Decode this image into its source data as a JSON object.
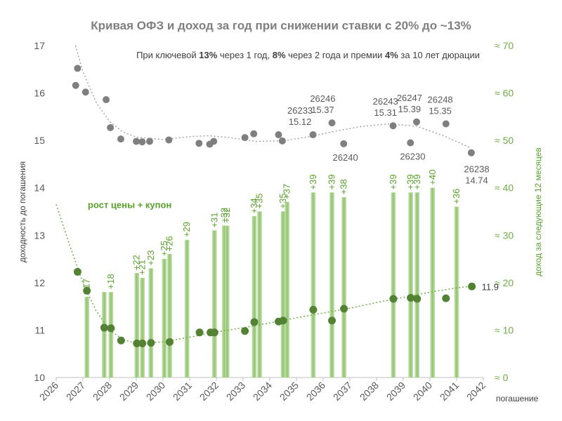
{
  "chart_data": {
    "type": "combo",
    "title": "Кривая ОФЗ и доход за год при снижении ставки с 20% до ~13%",
    "subtitle": {
      "t1": "При ключевой ",
      "b1": "13%",
      "t2": " через 1 год, ",
      "b2": "8%",
      "t3": " через 2 года и премии ",
      "b3": "4%",
      "t4": " за 10 лет дюрации"
    },
    "xlabel": "погашение",
    "ylabel": "доходность до погашения",
    "y2label": "доход за следующие 12 месяцев",
    "xlim": [
      2026,
      2042
    ],
    "ylim": [
      10,
      17
    ],
    "y2lim": [
      0,
      70
    ],
    "x_ticks": [
      "2026",
      "2027",
      "2028",
      "2029",
      "2030",
      "2031",
      "2032",
      "2033",
      "2034",
      "2035",
      "2036",
      "2037",
      "2038",
      "2039",
      "2040",
      "2041",
      "2042"
    ],
    "y_ticks": [
      "10",
      "11",
      "12",
      "13",
      "14",
      "15",
      "16",
      "17"
    ],
    "y2_ticks": [
      "≈ 0",
      "≈ 10",
      "≈ 20",
      "≈ 30",
      "≈ 40",
      "≈ 50",
      "≈ 60",
      "≈ 70"
    ],
    "y2_tick_values": [
      0,
      10,
      20,
      30,
      40,
      50,
      60,
      70
    ],
    "colors": {
      "yield_points": "#7f7f7f",
      "yield_trend": "#a6a6a6",
      "income_points": "#548235",
      "income_trend": "#70ad47",
      "bars": "#a9d18e",
      "bar_labels": "#5aa02c"
    },
    "series_label": "рост цены + купон",
    "yield_points": [
      {
        "x": 2026.73,
        "y": 16.16
      },
      {
        "x": 2026.8,
        "y": 16.52
      },
      {
        "x": 2027.1,
        "y": 16.02
      },
      {
        "x": 2027.87,
        "y": 15.86
      },
      {
        "x": 2028.03,
        "y": 15.27
      },
      {
        "x": 2028.42,
        "y": 15.03
      },
      {
        "x": 2029.0,
        "y": 14.98
      },
      {
        "x": 2029.22,
        "y": 14.97
      },
      {
        "x": 2029.5,
        "y": 14.98
      },
      {
        "x": 2030.22,
        "y": 15.01
      },
      {
        "x": 2031.35,
        "y": 14.94
      },
      {
        "x": 2031.75,
        "y": 14.92
      },
      {
        "x": 2031.9,
        "y": 14.98
      },
      {
        "x": 2033.07,
        "y": 15.06
      },
      {
        "x": 2033.4,
        "y": 15.14
      },
      {
        "x": 2034.33,
        "y": 15.12
      },
      {
        "x": 2034.47,
        "y": 14.99
      },
      {
        "x": 2035.62,
        "y": 15.12
      },
      {
        "x": 2036.33,
        "y": 15.37
      },
      {
        "x": 2036.77,
        "y": 14.93
      },
      {
        "x": 2038.62,
        "y": 15.31
      },
      {
        "x": 2039.27,
        "y": 14.95
      },
      {
        "x": 2039.5,
        "y": 15.39
      },
      {
        "x": 2040.6,
        "y": 15.35
      },
      {
        "x": 2041.55,
        "y": 14.74
      }
    ],
    "bond_labels": [
      {
        "x": 2035.45,
        "y": 15.12,
        "name": "26233",
        "value": "15.12"
      },
      {
        "x": 2036.3,
        "y": 15.37,
        "name": "26246",
        "value": "15.37"
      },
      {
        "x": 2036.78,
        "y": 14.93,
        "name": "26240",
        "value": ""
      },
      {
        "x": 2038.65,
        "y": 15.31,
        "name": "26243",
        "value": "15.31"
      },
      {
        "x": 2039.55,
        "y": 15.39,
        "name": "26247",
        "value": "15.39"
      },
      {
        "x": 2039.3,
        "y": 14.95,
        "name": "26230",
        "value": ""
      },
      {
        "x": 2040.7,
        "y": 15.35,
        "name": "26248",
        "value": "15.35"
      },
      {
        "x": 2041.75,
        "y": 14.74,
        "name": "26238",
        "value": "14.74"
      }
    ],
    "income_points": [
      {
        "x": 2026.8,
        "y": 22.3
      },
      {
        "x": 2027.15,
        "y": 18.3
      },
      {
        "x": 2027.8,
        "y": 10.5
      },
      {
        "x": 2028.05,
        "y": 10.4
      },
      {
        "x": 2028.43,
        "y": 7.8
      },
      {
        "x": 2029.02,
        "y": 7.2
      },
      {
        "x": 2029.23,
        "y": 7.2
      },
      {
        "x": 2029.55,
        "y": 7.3
      },
      {
        "x": 2030.25,
        "y": 7.5
      },
      {
        "x": 2031.37,
        "y": 9.5
      },
      {
        "x": 2031.78,
        "y": 9.5
      },
      {
        "x": 2031.93,
        "y": 9.5
      },
      {
        "x": 2033.07,
        "y": 9.8
      },
      {
        "x": 2033.42,
        "y": 11.7
      },
      {
        "x": 2034.33,
        "y": 11.8
      },
      {
        "x": 2034.5,
        "y": 12.0
      },
      {
        "x": 2035.63,
        "y": 14.3
      },
      {
        "x": 2036.33,
        "y": 12.0
      },
      {
        "x": 2036.78,
        "y": 14.5
      },
      {
        "x": 2038.63,
        "y": 16.6
      },
      {
        "x": 2039.28,
        "y": 16.8
      },
      {
        "x": 2039.52,
        "y": 16.6
      },
      {
        "x": 2040.6,
        "y": 16.7
      },
      {
        "x": 2041.57,
        "y": 19.2
      }
    ],
    "income_end_label": "11.9",
    "income_bars": [
      {
        "x": 2027.15,
        "value": 17,
        "label": "+17"
      },
      {
        "x": 2027.8,
        "value": 18,
        "label": ""
      },
      {
        "x": 2028.05,
        "value": 18,
        "label": "+18"
      },
      {
        "x": 2029.02,
        "value": 22,
        "label": "+22"
      },
      {
        "x": 2029.23,
        "value": 21,
        "label": "+21"
      },
      {
        "x": 2029.55,
        "value": 23,
        "label": "+23"
      },
      {
        "x": 2030.05,
        "value": 25,
        "label": "+25"
      },
      {
        "x": 2030.25,
        "value": 26,
        "label": "+26"
      },
      {
        "x": 2030.9,
        "value": 29,
        "label": "+29"
      },
      {
        "x": 2031.93,
        "value": 31,
        "label": "+31"
      },
      {
        "x": 2032.3,
        "value": 32,
        "label": "+32"
      },
      {
        "x": 2032.4,
        "value": 32,
        "label": "+32"
      },
      {
        "x": 2033.42,
        "value": 34,
        "label": "+34"
      },
      {
        "x": 2033.62,
        "value": 35,
        "label": "+35"
      },
      {
        "x": 2034.5,
        "value": 35,
        "label": "+35"
      },
      {
        "x": 2034.65,
        "value": 37,
        "label": "+37"
      },
      {
        "x": 2035.63,
        "value": 39,
        "label": "+39"
      },
      {
        "x": 2036.33,
        "value": 39,
        "label": "+39"
      },
      {
        "x": 2036.78,
        "value": 38,
        "label": "+38"
      },
      {
        "x": 2038.63,
        "value": 39,
        "label": "+39"
      },
      {
        "x": 2039.28,
        "value": 39,
        "label": "+39"
      },
      {
        "x": 2039.52,
        "value": 39,
        "label": "+39"
      },
      {
        "x": 2040.1,
        "value": 40,
        "label": "+40"
      },
      {
        "x": 2041.0,
        "value": 36,
        "label": "+36"
      }
    ]
  }
}
